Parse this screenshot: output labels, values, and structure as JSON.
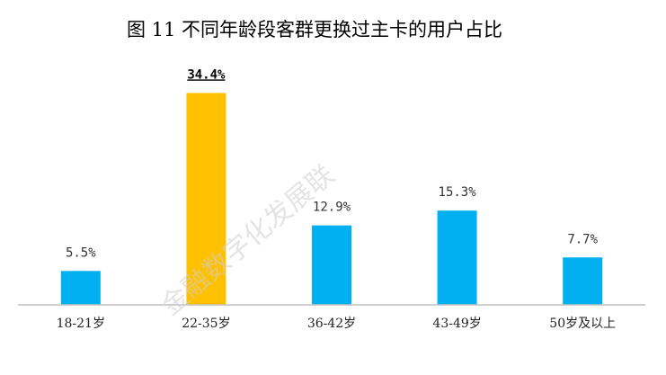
{
  "chart_data": {
    "type": "bar",
    "title": "图 11 不同年龄段客群更换过主卡的用户占比",
    "categories": [
      "18-21岁",
      "22-35岁",
      "36-42岁",
      "43-49岁",
      "50岁及以上"
    ],
    "values": [
      5.5,
      34.4,
      12.9,
      15.3,
      7.7
    ],
    "value_labels": [
      "5.5%",
      "34.4%",
      "12.9%",
      "15.3%",
      "7.7%"
    ],
    "unit": "%",
    "xlabel": "",
    "ylabel": "",
    "ylim": [
      0,
      40
    ],
    "grid": false,
    "legend": "none",
    "highlight_index": 1,
    "colors": {
      "bar": "#00B0F0",
      "highlight": "#FFC000",
      "axis": "#BFBFBF"
    },
    "watermark": "金融数字化发展联"
  }
}
